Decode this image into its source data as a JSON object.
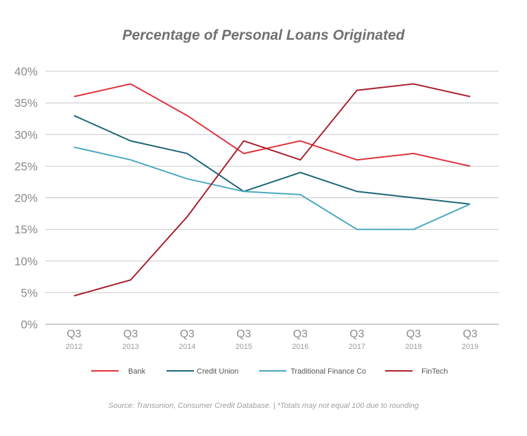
{
  "chart_data": {
    "type": "line",
    "title": "Percentage of Personal Loans Originated",
    "xlabel": "",
    "ylabel": "",
    "categories": [
      {
        "quarter": "Q3",
        "year": "2012"
      },
      {
        "quarter": "Q3",
        "year": "2013"
      },
      {
        "quarter": "Q3",
        "year": "2014"
      },
      {
        "quarter": "Q3",
        "year": "2015"
      },
      {
        "quarter": "Q3",
        "year": "2016"
      },
      {
        "quarter": "Q3",
        "year": "2017"
      },
      {
        "quarter": "Q3",
        "year": "2018"
      },
      {
        "quarter": "Q3",
        "year": "2019"
      }
    ],
    "y_ticks": [
      {
        "value": 0,
        "label": "0%"
      },
      {
        "value": 5,
        "label": "5%"
      },
      {
        "value": 10,
        "label": "10%"
      },
      {
        "value": 15,
        "label": "15%"
      },
      {
        "value": 20,
        "label": "20%"
      },
      {
        "value": 25,
        "label": "25%"
      },
      {
        "value": 30,
        "label": "30%"
      },
      {
        "value": 35,
        "label": "35%"
      },
      {
        "value": 40,
        "label": "40%"
      }
    ],
    "ylim": [
      0,
      40
    ],
    "grid": true,
    "legend_position": "bottom",
    "series": [
      {
        "name": "Bank",
        "color": "#e0303a",
        "values": [
          36,
          38,
          33,
          27,
          29,
          26,
          27,
          25
        ]
      },
      {
        "name": "Credit Union",
        "color": "#1c6478",
        "values": [
          33,
          29,
          27,
          21,
          24,
          21,
          20,
          19
        ]
      },
      {
        "name": "Traditional Finance Co",
        "color": "#4aa8c0",
        "values": [
          28,
          26,
          23,
          21,
          20.5,
          15,
          15,
          19
        ]
      },
      {
        "name": "FinTech",
        "color": "#a8202c",
        "values": [
          4.5,
          7,
          17,
          29,
          26,
          37,
          38,
          36
        ]
      }
    ],
    "source": "Source: Transunion, Consumer Credit Database. | *Totals may not equal 100 due to rounding"
  }
}
